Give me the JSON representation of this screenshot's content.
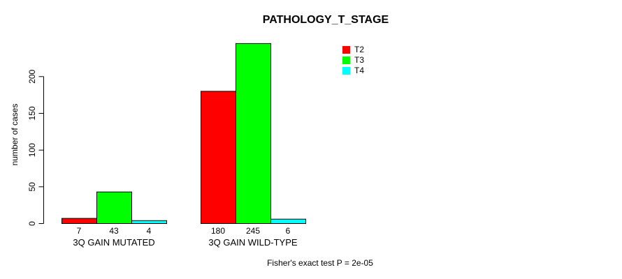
{
  "chart_data": {
    "type": "bar",
    "title": "PATHOLOGY_T_STAGE",
    "categories": [
      "3Q GAIN MUTATED",
      "3Q GAIN WILD-TYPE"
    ],
    "series": [
      {
        "name": "T2",
        "color": "#ff0000",
        "values": [
          7,
          180
        ]
      },
      {
        "name": "T3",
        "color": "#00ff00",
        "values": [
          43,
          245
        ]
      },
      {
        "name": "T4",
        "color": "#00ffff",
        "values": [
          4,
          6
        ]
      }
    ],
    "ylabel": "number of cases",
    "xlabel": "",
    "yticks": [
      0,
      50,
      100,
      150,
      200
    ],
    "ylim": [
      0,
      245
    ],
    "grid": false,
    "legend_position": "top-right",
    "bar_values_shown_below_bars": true,
    "annotation": "Fisher's exact test P = 2e-05"
  }
}
